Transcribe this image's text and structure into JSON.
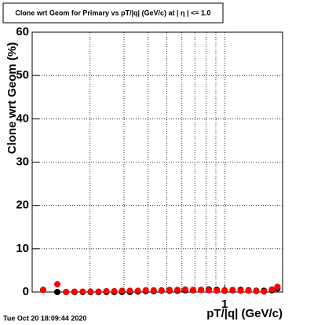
{
  "chart_data": {
    "type": "scatter",
    "title": "Clone wrt Geom for Primary vs pT/|q| (GeV/c) at | η | <= 1.0",
    "x_label": "pT/|q| (GeV/c)",
    "y_label": "Clone wrt Geom (%)",
    "timestamp": "Tue Oct 20 18:09:44 2020",
    "x_log": true,
    "grid": true,
    "xlim": [
      0.1,
      2.0
    ],
    "ylim": [
      0,
      60
    ],
    "xticks": [
      1
    ],
    "xminor_ticks": [
      0.2,
      0.3,
      0.4,
      0.5,
      0.6,
      0.7,
      0.8,
      0.9,
      2
    ],
    "yticks": [
      0,
      10,
      20,
      30,
      40,
      50,
      60
    ],
    "x": [
      0.114,
      0.135,
      0.15,
      0.166,
      0.183,
      0.201,
      0.221,
      0.243,
      0.267,
      0.293,
      0.322,
      0.354,
      0.389,
      0.428,
      0.47,
      0.517,
      0.568,
      0.624,
      0.686,
      0.754,
      0.828,
      0.91,
      1.0,
      1.1,
      1.21,
      1.33,
      1.46,
      1.6,
      1.76,
      1.88
    ],
    "series": [
      {
        "color": "#000000",
        "values": [
          0.5,
          0,
          0,
          0,
          0,
          0,
          0,
          0,
          0,
          0,
          0,
          0.1,
          0.2,
          0.2,
          0.3,
          0.3,
          0.3,
          0.4,
          0.4,
          0.5,
          0.6,
          0.5,
          0.3,
          0.4,
          0.5,
          0.4,
          0.3,
          0.3,
          0.4,
          0.8
        ]
      },
      {
        "color": "#ff0000",
        "values": [
          0.5,
          1.8,
          0,
          0.1,
          0.1,
          0.1,
          0.1,
          0.2,
          0.2,
          0.3,
          0.3,
          0.3,
          0.4,
          0.4,
          0.4,
          0.5,
          0.5,
          0.6,
          0.5,
          0.5,
          0.4,
          0.3,
          0.4,
          0.5,
          0.3,
          0.3,
          0.2,
          0.1,
          0.6,
          1.2
        ]
      }
    ]
  }
}
